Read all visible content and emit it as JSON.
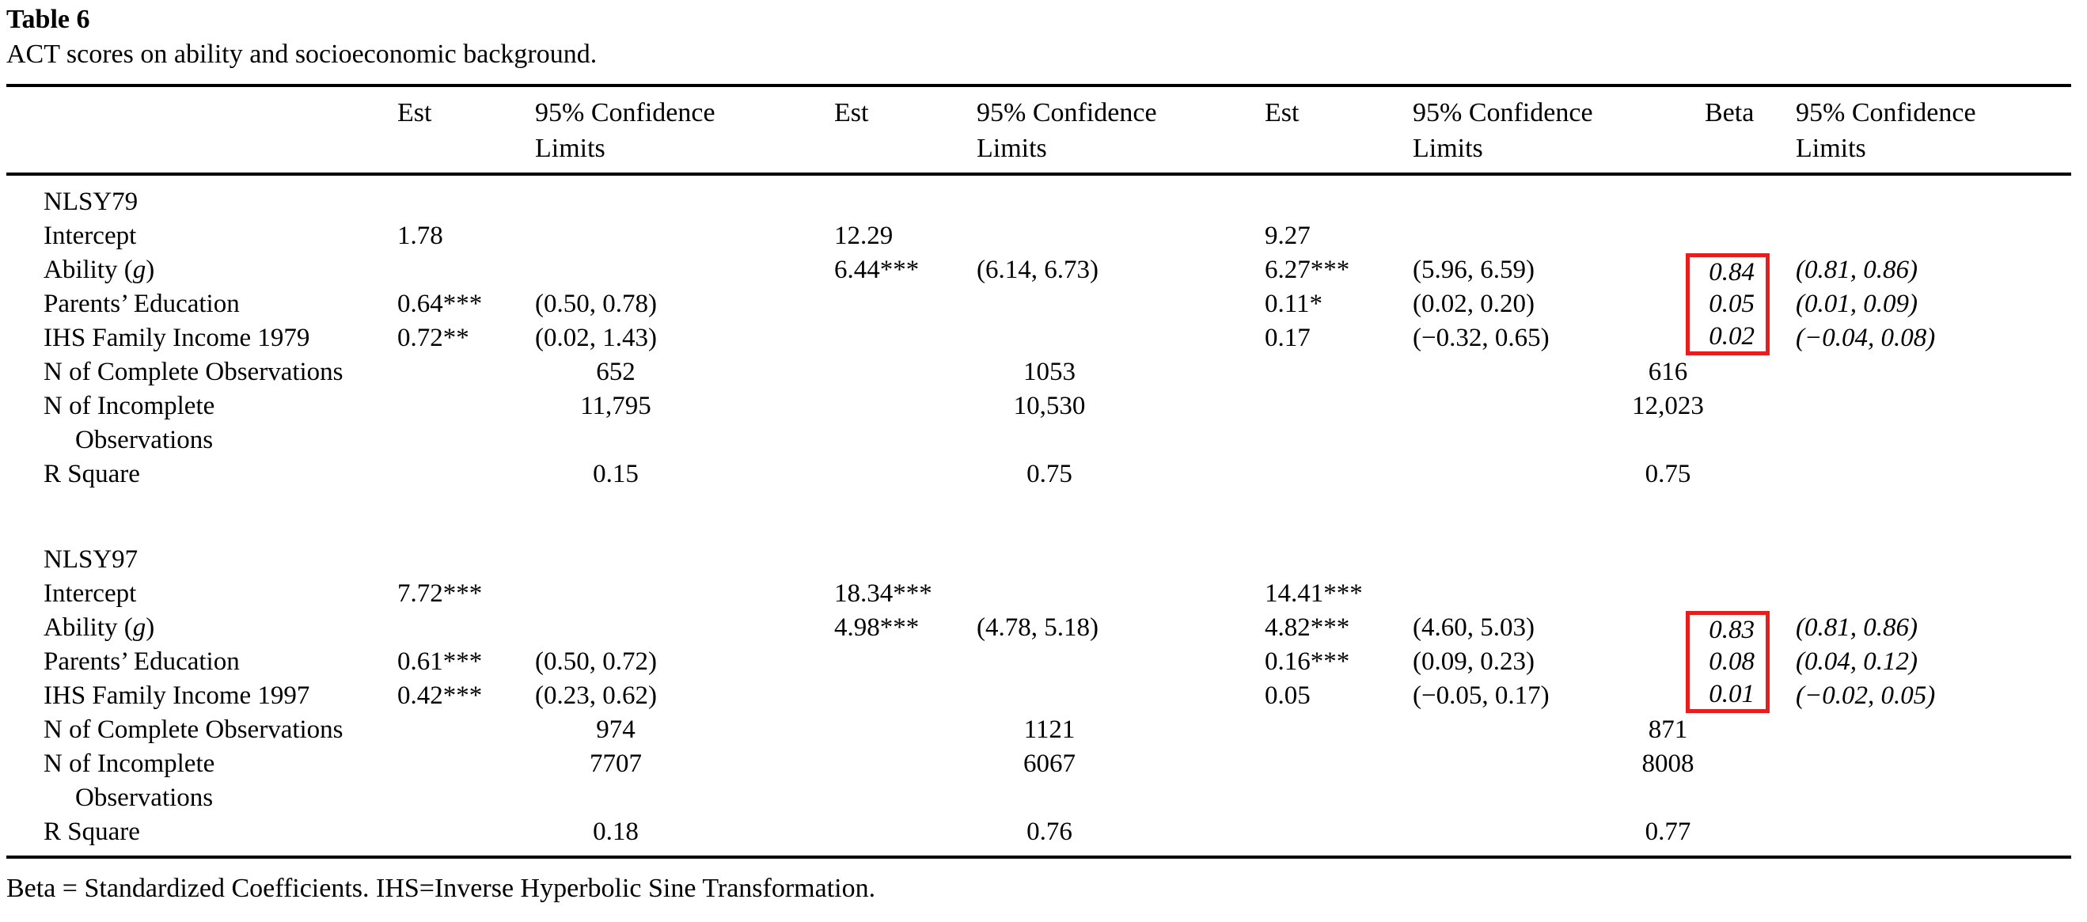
{
  "title": "Table 6",
  "subtitle": "ACT scores on ability and socioeconomic background.",
  "footnote": "Beta = Standardized Coefficients. IHS=Inverse Hyperbolic Sine Transformation.",
  "colors": {
    "highlight": "#e3201f"
  },
  "table": {
    "column_headers": [
      "",
      "Est",
      "95% Confidence Limits",
      "Est",
      "95% Confidence Limits",
      "Est",
      "95% Confidence Limits",
      "Beta",
      "95% Confidence Limits"
    ],
    "sections": [
      {
        "name": "NLSY79",
        "rows": [
          {
            "type": "section",
            "label": "NLSY79"
          },
          {
            "type": "data",
            "label": "Intercept",
            "est1": "1.78",
            "est2": "12.29",
            "est3": "9.27"
          },
          {
            "type": "data",
            "label_parts": {
              "pre": "Ability (",
              "italic": "g",
              "post": ")"
            },
            "est2": "6.44***",
            "ci2": "(6.14, 6.73)",
            "est3": "6.27***",
            "ci3": "(5.96, 6.59)",
            "beta": "0.84",
            "ci4": "(0.81, 0.86)",
            "beta_frame": "top"
          },
          {
            "type": "data",
            "label": "Parents’ Education",
            "est1": "0.64***",
            "ci1": "(0.50, 0.78)",
            "est3": "0.11*",
            "ci3": "(0.02, 0.20)",
            "beta": "0.05",
            "ci4": "(0.01, 0.09)",
            "beta_frame": "mid"
          },
          {
            "type": "data",
            "label": "IHS Family Income 1979",
            "est1": "0.72**",
            "ci1": "(0.02, 1.43)",
            "est3": "0.17",
            "ci3": "(−0.32, 0.65)",
            "beta": "0.02",
            "ci4": "(−0.04, 0.08)",
            "beta_frame": "bottom"
          },
          {
            "type": "stats",
            "label": "N of Complete Observations",
            "g1": "652",
            "g2": "1053",
            "g3": "616"
          },
          {
            "type": "stats",
            "label": "N of Incomplete",
            "g1": "11,795",
            "g2": "10,530",
            "g3": "12,023"
          },
          {
            "type": "cont",
            "label": "Observations"
          },
          {
            "type": "stats",
            "label": "R Square",
            "g1": "0.15",
            "g2": "0.75",
            "g3": "0.75"
          },
          {
            "type": "spacer"
          }
        ]
      },
      {
        "name": "NLSY97",
        "rows": [
          {
            "type": "section",
            "label": "NLSY97"
          },
          {
            "type": "data",
            "label": "Intercept",
            "est1": "7.72***",
            "est2": "18.34***",
            "est3": "14.41***"
          },
          {
            "type": "data",
            "label_parts": {
              "pre": "Ability (",
              "italic": "g",
              "post": ")"
            },
            "est2": "4.98***",
            "ci2": "(4.78, 5.18)",
            "est3": "4.82***",
            "ci3": "(4.60, 5.03)",
            "beta": "0.83",
            "ci4": "(0.81, 0.86)",
            "beta_frame": "top"
          },
          {
            "type": "data",
            "label": "Parents’ Education",
            "est1": "0.61***",
            "ci1": "(0.50, 0.72)",
            "est3": "0.16***",
            "ci3": "(0.09, 0.23)",
            "beta": "0.08",
            "ci4": "(0.04, 0.12)",
            "beta_frame": "mid"
          },
          {
            "type": "data",
            "label": "IHS Family Income 1997",
            "est1": "0.42***",
            "ci1": "(0.23, 0.62)",
            "est3": "0.05",
            "ci3": "(−0.05, 0.17)",
            "beta": "0.01",
            "ci4": "(−0.02, 0.05)",
            "beta_frame": "bottom"
          },
          {
            "type": "stats",
            "label": "N of Complete Observations",
            "g1": "974",
            "g2": "1121",
            "g3": "871"
          },
          {
            "type": "stats",
            "label": "N of Incomplete",
            "g1": "7707",
            "g2": "6067",
            "g3": "8008"
          },
          {
            "type": "cont",
            "label": "Observations"
          },
          {
            "type": "stats",
            "label": "R Square",
            "g1": "0.18",
            "g2": "0.76",
            "g3": "0.77"
          }
        ]
      }
    ]
  }
}
